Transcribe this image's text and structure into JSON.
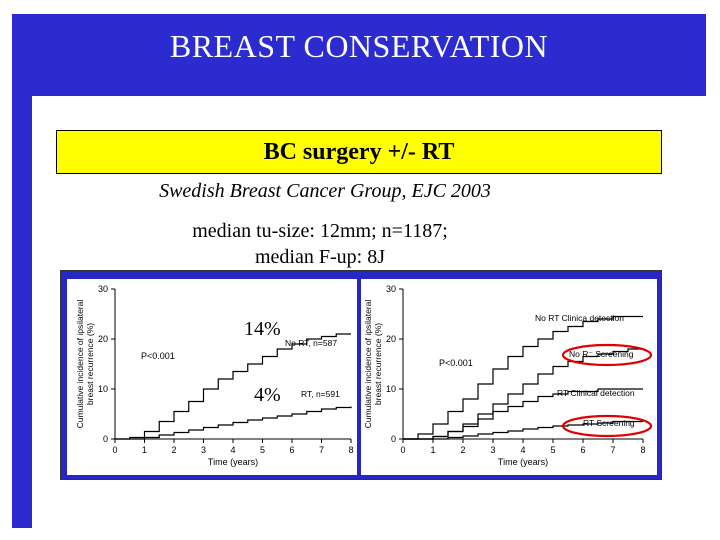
{
  "slide": {
    "title": "BREAST CONSERVATION",
    "banner": "BC surgery +/- RT",
    "source": "Swedish Breast Cancer Group, EJC 2003",
    "stats_line1": "median tu-size: 12mm; n=1187;",
    "stats_line2": "median F-up: 8J",
    "callout_high": "14%",
    "callout_low": "4%",
    "colors": {
      "frame": "#2b2bd0",
      "title_text": "#ffffff",
      "banner_bg": "#ffff00",
      "figure_bg": "#2727c4",
      "highlight_oval": "#e00000"
    }
  },
  "chart_data": [
    {
      "type": "line",
      "title": "",
      "xlabel": "Time (years)",
      "ylabel": "Cumulative incidence of ipsilateral breast recurrence (%)",
      "xlim": [
        0,
        8
      ],
      "ylim": [
        0,
        30
      ],
      "x_ticks": [
        "0",
        "1",
        "2",
        "3",
        "4",
        "5",
        "6",
        "7",
        "8"
      ],
      "y_ticks": [
        "0",
        "10",
        "20",
        "30"
      ],
      "annotations": [
        "P<0.001"
      ],
      "series": [
        {
          "name": "No RT, n=587",
          "x": [
            0,
            0.5,
            1,
            1.5,
            2,
            2.5,
            3,
            3.5,
            4,
            4.5,
            5,
            5.5,
            6,
            6.5,
            7,
            7.5,
            8
          ],
          "values": [
            0,
            0.3,
            1.5,
            3.5,
            5.5,
            7.5,
            10,
            12,
            13.5,
            15,
            16.5,
            18,
            19,
            20,
            20.5,
            21,
            21
          ]
        },
        {
          "name": "RT, n=591",
          "x": [
            0,
            0.5,
            1,
            1.5,
            2,
            2.5,
            3,
            3.5,
            4,
            4.5,
            5,
            5.5,
            6,
            6.5,
            7,
            7.5,
            8
          ],
          "values": [
            0,
            0,
            0.3,
            0.8,
            1.3,
            1.8,
            2.3,
            2.8,
            3.3,
            3.8,
            4.2,
            4.6,
            5,
            5.5,
            6,
            6.3,
            6.5
          ]
        }
      ]
    },
    {
      "type": "line",
      "title": "",
      "xlabel": "Time (years)",
      "ylabel": "Cumulative incidence of ipsilateral breast recurrence (%)",
      "xlim": [
        0,
        8
      ],
      "ylim": [
        0,
        30
      ],
      "x_ticks": [
        "0",
        "1",
        "2",
        "3",
        "4",
        "5",
        "6",
        "7",
        "8"
      ],
      "y_ticks": [
        "0",
        "10",
        "20",
        "30"
      ],
      "annotations": [
        "P<0.001"
      ],
      "series": [
        {
          "name": "No RT Clinica detection",
          "x": [
            0,
            0.5,
            1,
            1.5,
            2,
            2.5,
            3,
            3.5,
            4,
            4.5,
            5,
            5.5,
            6,
            6.5,
            7,
            7.5,
            8
          ],
          "values": [
            0,
            1,
            3,
            5.5,
            8,
            11,
            14,
            16.5,
            18.5,
            20,
            21.5,
            22.5,
            23.5,
            24,
            24.5,
            24.5,
            24.5
          ]
        },
        {
          "name": "No R⁻ Screening",
          "x": [
            0,
            0.5,
            1,
            1.5,
            2,
            2.5,
            3,
            3.5,
            4,
            4.5,
            5,
            5.5,
            6,
            6.5,
            7,
            7.5,
            8
          ],
          "values": [
            0,
            0,
            0.5,
            1.5,
            3,
            5,
            7,
            9,
            11,
            13,
            14.5,
            15.5,
            16.5,
            17,
            17.5,
            18,
            18
          ]
        },
        {
          "name": "RT Clinical detection",
          "x": [
            0,
            0.5,
            1,
            1.5,
            2,
            2.5,
            3,
            3.5,
            4,
            4.5,
            5,
            5.5,
            6,
            6.5,
            7,
            7.5,
            8
          ],
          "values": [
            0,
            0,
            0.5,
            1.5,
            2.5,
            4,
            5.5,
            6.5,
            7.5,
            8.5,
            9,
            9.5,
            9.5,
            10,
            10,
            10,
            10
          ]
        },
        {
          "name": "RT Screening",
          "x": [
            0,
            0.5,
            1,
            1.5,
            2,
            2.5,
            3,
            3.5,
            4,
            4.5,
            5,
            5.5,
            6,
            6.5,
            7,
            7.5,
            8
          ],
          "values": [
            0,
            0,
            0,
            0.3,
            0.6,
            1,
            1.3,
            1.6,
            2,
            2.3,
            2.6,
            2.8,
            3,
            3.2,
            3.5,
            3.5,
            3.5
          ]
        }
      ]
    }
  ]
}
